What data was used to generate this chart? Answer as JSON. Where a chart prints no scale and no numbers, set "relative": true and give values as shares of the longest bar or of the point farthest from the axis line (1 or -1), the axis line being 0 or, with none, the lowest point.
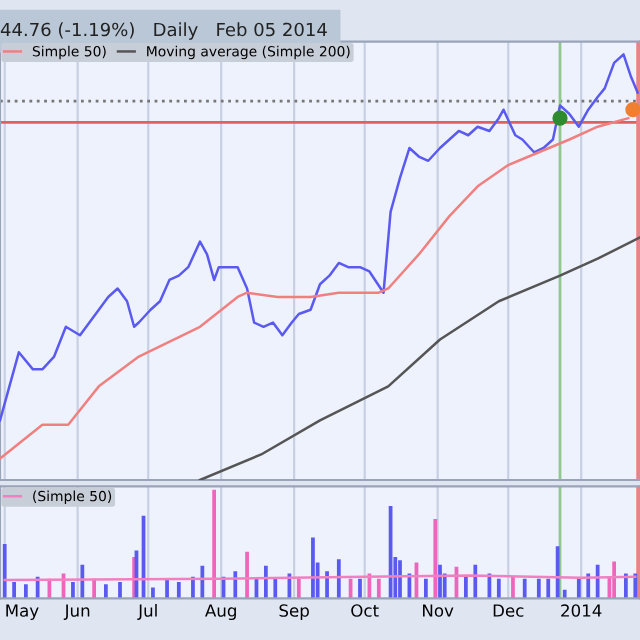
{
  "chart_data": [
    {
      "type": "line",
      "title": "44.76 (-1.19%)   Daily   Feb 05 2014",
      "relative": true,
      "grid": "x",
      "tick_labels": false,
      "legend": "top left",
      "xlim": [
        "2013-04-29",
        "2014-01-26"
      ],
      "xticks": [
        {
          "value": "2013-05-01",
          "label": null
        },
        {
          "value": "2013-06-01",
          "label": null
        },
        {
          "value": "2013-07-01",
          "label": null
        },
        {
          "value": "2013-08-01",
          "label": null
        },
        {
          "value": "2013-09-01",
          "label": null
        },
        {
          "value": "2013-10-01",
          "label": null
        },
        {
          "value": "2013-11-01",
          "label": null
        },
        {
          "value": "2013-12-01",
          "label": null
        },
        {
          "value": "2014-01-01",
          "label": null
        }
      ],
      "ref_lines": [
        {
          "axis": "y",
          "value": 0.89,
          "label": null,
          "color": "#777777",
          "line_style": "dotted"
        },
        {
          "axis": "y",
          "value": 0.84,
          "label": null,
          "color": "#e06060",
          "line_style": "solid"
        },
        {
          "axis": "x",
          "value": "2013-12-23",
          "label": null,
          "color": "#90c890",
          "line_style": "solid"
        },
        {
          "axis": "x",
          "value": "2014-01-25",
          "label": null,
          "color": "#f08080",
          "line_style": "solid"
        }
      ],
      "series": [
        {
          "color": "#5a5af0",
          "x": [
            "2013-04-29",
            "2013-05-03",
            "2013-05-07",
            "2013-05-13",
            "2013-05-17",
            "2013-05-22",
            "2013-05-27",
            "2013-06-02",
            "2013-06-06",
            "2013-06-10",
            "2013-06-14",
            "2013-06-18",
            "2013-06-22",
            "2013-06-25",
            "2013-06-27",
            "2013-07-02",
            "2013-07-06",
            "2013-07-10",
            "2013-07-14",
            "2013-07-18",
            "2013-07-23",
            "2013-07-26",
            "2013-07-29",
            "2013-07-31",
            "2013-08-04",
            "2013-08-08",
            "2013-08-12",
            "2013-08-15",
            "2013-08-19",
            "2013-08-23",
            "2013-08-27",
            "2013-08-31",
            "2013-09-03",
            "2013-09-08",
            "2013-09-12",
            "2013-09-16",
            "2013-09-20",
            "2013-09-24",
            "2013-09-29",
            "2013-10-03",
            "2013-10-09",
            "2013-10-12",
            "2013-10-16",
            "2013-10-20",
            "2013-10-24",
            "2013-10-28",
            "2013-11-02",
            "2013-11-06",
            "2013-11-10",
            "2013-11-14",
            "2013-11-18",
            "2013-11-23",
            "2013-11-27",
            "2013-11-29",
            "2013-12-04",
            "2013-12-07",
            "2013-12-12",
            "2013-12-16",
            "2013-12-20",
            "2013-12-23",
            "2013-12-27",
            "2013-12-31",
            "2014-01-04",
            "2014-01-08",
            "2014-01-11",
            "2014-01-15",
            "2014-01-19",
            "2014-01-22",
            "2014-01-25"
          ],
          "values": [
            0.14,
            0.22,
            0.3,
            0.26,
            0.26,
            0.29,
            0.36,
            0.34,
            0.37,
            0.4,
            0.43,
            0.45,
            0.42,
            0.36,
            0.37,
            0.4,
            0.42,
            0.47,
            0.48,
            0.5,
            0.56,
            0.53,
            0.47,
            0.5,
            0.5,
            0.5,
            0.45,
            0.37,
            0.36,
            0.37,
            0.34,
            0.37,
            0.39,
            0.4,
            0.46,
            0.48,
            0.51,
            0.5,
            0.5,
            0.49,
            0.44,
            0.63,
            0.71,
            0.78,
            0.76,
            0.75,
            0.78,
            0.8,
            0.82,
            0.81,
            0.83,
            0.82,
            0.85,
            0.87,
            0.81,
            0.8,
            0.77,
            0.78,
            0.8,
            0.88,
            0.86,
            0.83,
            0.87,
            0.9,
            0.92,
            0.98,
            1.0,
            0.95,
            0.91
          ]
        },
        {
          "name": "Simple 50)",
          "color": "#f08080",
          "x": [
            "2013-04-29",
            "2013-05-17",
            "2013-05-28",
            "2013-06-10",
            "2013-06-27",
            "2013-07-23",
            "2013-08-08",
            "2013-08-12",
            "2013-08-25",
            "2013-09-08",
            "2013-09-20",
            "2013-10-07",
            "2013-10-11",
            "2013-10-24",
            "2013-11-06",
            "2013-11-18",
            "2013-12-01",
            "2013-12-14",
            "2013-12-27",
            "2014-01-08",
            "2014-01-21"
          ],
          "values": [
            0.05,
            0.13,
            0.13,
            0.22,
            0.29,
            0.36,
            0.43,
            0.44,
            0.43,
            0.43,
            0.44,
            0.44,
            0.45,
            0.53,
            0.62,
            0.69,
            0.74,
            0.77,
            0.8,
            0.83,
            0.85
          ]
        },
        {
          "name": "Moving average (Simple 200)",
          "color": "#555555",
          "x": [
            "2013-07-23",
            "2013-08-18",
            "2013-09-12",
            "2013-10-11",
            "2013-11-02",
            "2013-11-27",
            "2013-12-23",
            "2014-01-08",
            "2014-01-26"
          ],
          "values": [
            0.0,
            0.06,
            0.14,
            0.22,
            0.33,
            0.42,
            0.48,
            0.52,
            0.57
          ]
        },
        {
          "type": "scatter",
          "marker": "circle",
          "colors": [
            "#2e8b2e",
            "#f08030"
          ],
          "x": [
            "2013-12-23",
            "2014-01-23"
          ],
          "values": [
            0.85,
            0.87
          ]
        }
      ]
    },
    {
      "type": "bar",
      "relative": true,
      "grid": "x",
      "tick_labels": "x",
      "legend": "top left",
      "xlim": [
        "2013-04-29",
        "2014-01-26"
      ],
      "xticks": [
        {
          "value": "2013-05-01",
          "label": "May"
        },
        {
          "value": "2013-06-01",
          "label": "Jun"
        },
        {
          "value": "2013-07-01",
          "label": "Jul"
        },
        {
          "value": "2013-08-01",
          "label": "Aug"
        },
        {
          "value": "2013-09-01",
          "label": "Sep"
        },
        {
          "value": "2013-10-01",
          "label": "Oct"
        },
        {
          "value": "2013-11-01",
          "label": "Nov"
        },
        {
          "value": "2013-12-01",
          "label": "Dec"
        },
        {
          "value": "2014-01-01",
          "label": "2014"
        }
      ],
      "ref_lines": [
        {
          "axis": "x",
          "value": "2013-12-23",
          "label": null,
          "color": "#90c890",
          "line_style": "solid"
        },
        {
          "axis": "x",
          "value": "2014-01-25",
          "label": null,
          "color": "#f08080",
          "line_style": "solid"
        }
      ],
      "series": [
        {
          "x": [
            "2013-05-01",
            "2013-05-05",
            "2013-05-10",
            "2013-05-15",
            "2013-05-20",
            "2013-05-26",
            "2013-05-30",
            "2013-06-03",
            "2013-06-08",
            "2013-06-13",
            "2013-06-19",
            "2013-06-25",
            "2013-06-26",
            "2013-06-29",
            "2013-07-03",
            "2013-07-09",
            "2013-07-14",
            "2013-07-20",
            "2013-07-24",
            "2013-07-29",
            "2013-08-02",
            "2013-08-07",
            "2013-08-12",
            "2013-08-16",
            "2013-08-20",
            "2013-08-24",
            "2013-08-30",
            "2013-09-03",
            "2013-09-09",
            "2013-09-11",
            "2013-09-15",
            "2013-09-20",
            "2013-09-25",
            "2013-09-29",
            "2013-10-03",
            "2013-10-07",
            "2013-10-12",
            "2013-10-14",
            "2013-10-16",
            "2013-10-20",
            "2013-10-23",
            "2013-10-27",
            "2013-10-31",
            "2013-11-02",
            "2013-11-04",
            "2013-11-09",
            "2013-11-13",
            "2013-11-17",
            "2013-11-23",
            "2013-11-27",
            "2013-12-03",
            "2013-12-08",
            "2013-12-14",
            "2013-12-18",
            "2013-12-22",
            "2013-12-25",
            "2013-12-31",
            "2014-01-04",
            "2014-01-08",
            "2014-01-13",
            "2014-01-15",
            "2014-01-20",
            "2014-01-24"
          ],
          "values": [
            0.5,
            0.15,
            0.13,
            0.2,
            0.18,
            0.23,
            0.15,
            0.31,
            0.18,
            0.13,
            0.15,
            0.38,
            0.44,
            0.76,
            0.1,
            0.18,
            0.15,
            0.2,
            0.3,
            1.0,
            0.2,
            0.25,
            0.43,
            0.18,
            0.3,
            0.18,
            0.23,
            0.18,
            0.56,
            0.33,
            0.25,
            0.36,
            0.18,
            0.18,
            0.23,
            0.18,
            0.85,
            0.38,
            0.35,
            0.23,
            0.33,
            0.18,
            0.73,
            0.31,
            0.23,
            0.29,
            0.2,
            0.31,
            0.23,
            0.18,
            0.2,
            0.18,
            0.18,
            0.18,
            0.48,
            0.08,
            0.18,
            0.23,
            0.31,
            0.2,
            0.34,
            0.23,
            0.23
          ],
          "colors": [
            "#5a5af0",
            "#5a5af0",
            "#5a5af0",
            "#5a5af0",
            "#ee66bb",
            "#ee66bb",
            "#5a5af0",
            "#5a5af0",
            "#ee66bb",
            "#5a5af0",
            "#5a5af0",
            "#ee66bb",
            "#5a5af0",
            "#5a5af0",
            "#5a5af0",
            "#5a5af0",
            "#5a5af0",
            "#5a5af0",
            "#5a5af0",
            "#ee66bb",
            "#5a5af0",
            "#5a5af0",
            "#ee66bb",
            "#5a5af0",
            "#5a5af0",
            "#5a5af0",
            "#5a5af0",
            "#ee66bb",
            "#5a5af0",
            "#5a5af0",
            "#5a5af0",
            "#5a5af0",
            "#ee66bb",
            "#5a5af0",
            "#ee66bb",
            "#ee66bb",
            "#5a5af0",
            "#5a5af0",
            "#5a5af0",
            "#5a5af0",
            "#ee66bb",
            "#5a5af0",
            "#ee66bb",
            "#5a5af0",
            "#5a5af0",
            "#ee66bb",
            "#5a5af0",
            "#5a5af0",
            "#5a5af0",
            "#5a5af0",
            "#ee66bb",
            "#5a5af0",
            "#5a5af0",
            "#5a5af0",
            "#5a5af0",
            "#5a5af0",
            "#5a5af0",
            "#5a5af0",
            "#5a5af0",
            "#ee66bb",
            "#ee66bb",
            "#5a5af0",
            "#5a5af0"
          ]
        },
        {
          "type": "line",
          "name": "(Simple 50)",
          "color": "#f080c0",
          "x": [
            "2013-05-01",
            "2013-08-01",
            "2013-10-01",
            "2013-11-15",
            "2014-01-01",
            "2014-01-24"
          ],
          "values": [
            0.17,
            0.18,
            0.2,
            0.21,
            0.19,
            0.2
          ]
        }
      ]
    }
  ]
}
